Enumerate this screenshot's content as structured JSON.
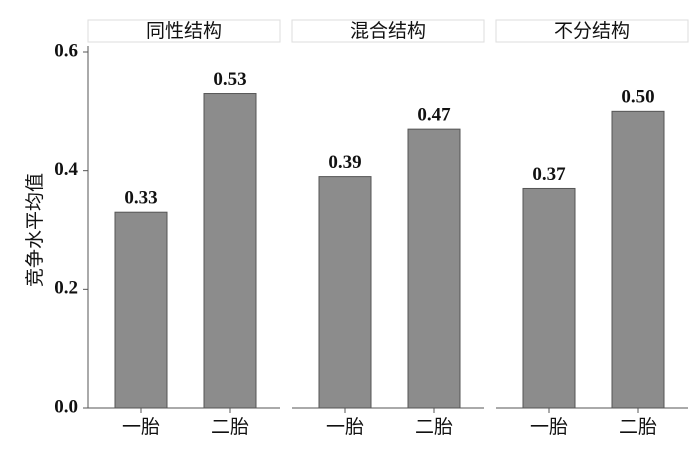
{
  "chart_data": [
    {
      "type": "bar",
      "title": "同性结构",
      "ylabel": "竞争水平均值",
      "categories": [
        "一胎",
        "二胎"
      ],
      "values": [
        0.33,
        0.53
      ],
      "color": "#8c8c8c",
      "ylim": [
        0,
        0.6
      ],
      "yticks": [
        {
          "value": 0,
          "label": "0.0"
        },
        0.2,
        0.4,
        0.6
      ]
    },
    {
      "type": "bar",
      "title": "混合结构",
      "categories": [
        "一胎",
        "二胎"
      ],
      "values": [
        0.39,
        0.47
      ],
      "color": "#8c8c8c",
      "ylim": [
        0,
        0.6
      ]
    },
    {
      "type": "bar",
      "title": "不分结构",
      "categories": [
        "一胎",
        "二胎"
      ],
      "values": [
        0.37,
        0.5
      ],
      "value_labels": [
        "0.37",
        "0.50"
      ],
      "color": "#8c8c8c",
      "ylim": [
        0,
        0.6
      ]
    }
  ]
}
